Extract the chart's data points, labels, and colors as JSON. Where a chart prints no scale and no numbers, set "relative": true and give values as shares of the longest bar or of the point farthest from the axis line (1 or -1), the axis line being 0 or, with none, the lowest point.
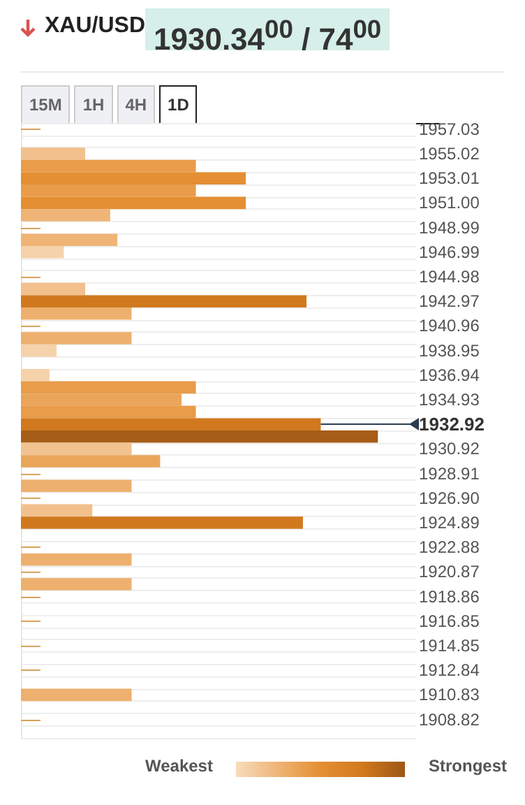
{
  "chart_data": {
    "type": "bar",
    "orientation": "horizontal",
    "relative": true,
    "title": "XAU/USD",
    "subtitle": "1930.34$^{00}$ / 74$^{00}$",
    "annotations": [
      "15M",
      "1H",
      "4H",
      "1D",
      "Weakest",
      "Strongest"
    ],
    "categories": [
      "1957.03",
      null,
      "1955.02",
      null,
      "1953.01",
      null,
      "1951.00",
      null,
      "1948.99",
      null,
      "1946.99",
      null,
      "1944.98",
      null,
      "1942.97",
      null,
      "1940.96",
      null,
      "1938.95",
      null,
      "1936.94",
      null,
      "1934.93",
      null,
      "1932.92",
      null,
      "1930.92",
      null,
      "1928.91",
      null,
      "1926.90",
      null,
      "1924.89",
      null,
      "1922.88",
      null,
      "1920.87",
      null,
      "1918.86",
      null,
      "1916.85",
      null,
      "1914.85",
      null,
      "1912.84",
      null,
      "1910.83",
      null,
      "1908.82",
      null
    ],
    "values": [
      null,
      null,
      0.18,
      0.49,
      0.63,
      0.49,
      0.63,
      0.25,
      null,
      0.27,
      0.12,
      null,
      null,
      0.18,
      0.8,
      0.31,
      null,
      0.31,
      0.1,
      null,
      0.08,
      0.49,
      0.45,
      0.49,
      0.84,
      1,
      0.31,
      0.39,
      null,
      0.31,
      null,
      0.2,
      0.79,
      null,
      null,
      0.31,
      null,
      0.31,
      null,
      null,
      null,
      null,
      null,
      null,
      null,
      null,
      0.31,
      null,
      null,
      null
    ],
    "colors": [
      null,
      null,
      "#f2c08c",
      "#e99c4a",
      "#e48f33",
      "#e99c4a",
      "#e48f33",
      "#efb476",
      null,
      "#efb476",
      "#f5d2aa",
      null,
      null,
      "#f2c08c",
      "#d1791f",
      "#eeb06e",
      null,
      "#eeb06e",
      "#f5d2aa",
      null,
      "#f5d2aa",
      "#e99c4a",
      "#eba55a",
      "#e99c4a",
      "#d1791f",
      "#a65d17",
      "#f2c290",
      "#eba55a",
      null,
      "#eeb06e",
      null,
      "#f2c08c",
      "#d1791f",
      null,
      null,
      "#eeb06e",
      null,
      "#eeb06e",
      null,
      null,
      null,
      null,
      null,
      null,
      null,
      null,
      "#eeb06e",
      null,
      null,
      null
    ],
    "ref_lines": [
      {
        "axis": "y",
        "value": "1932.92",
        "color": "#2c3e50"
      }
    ],
    "grid": "y"
  }
}
